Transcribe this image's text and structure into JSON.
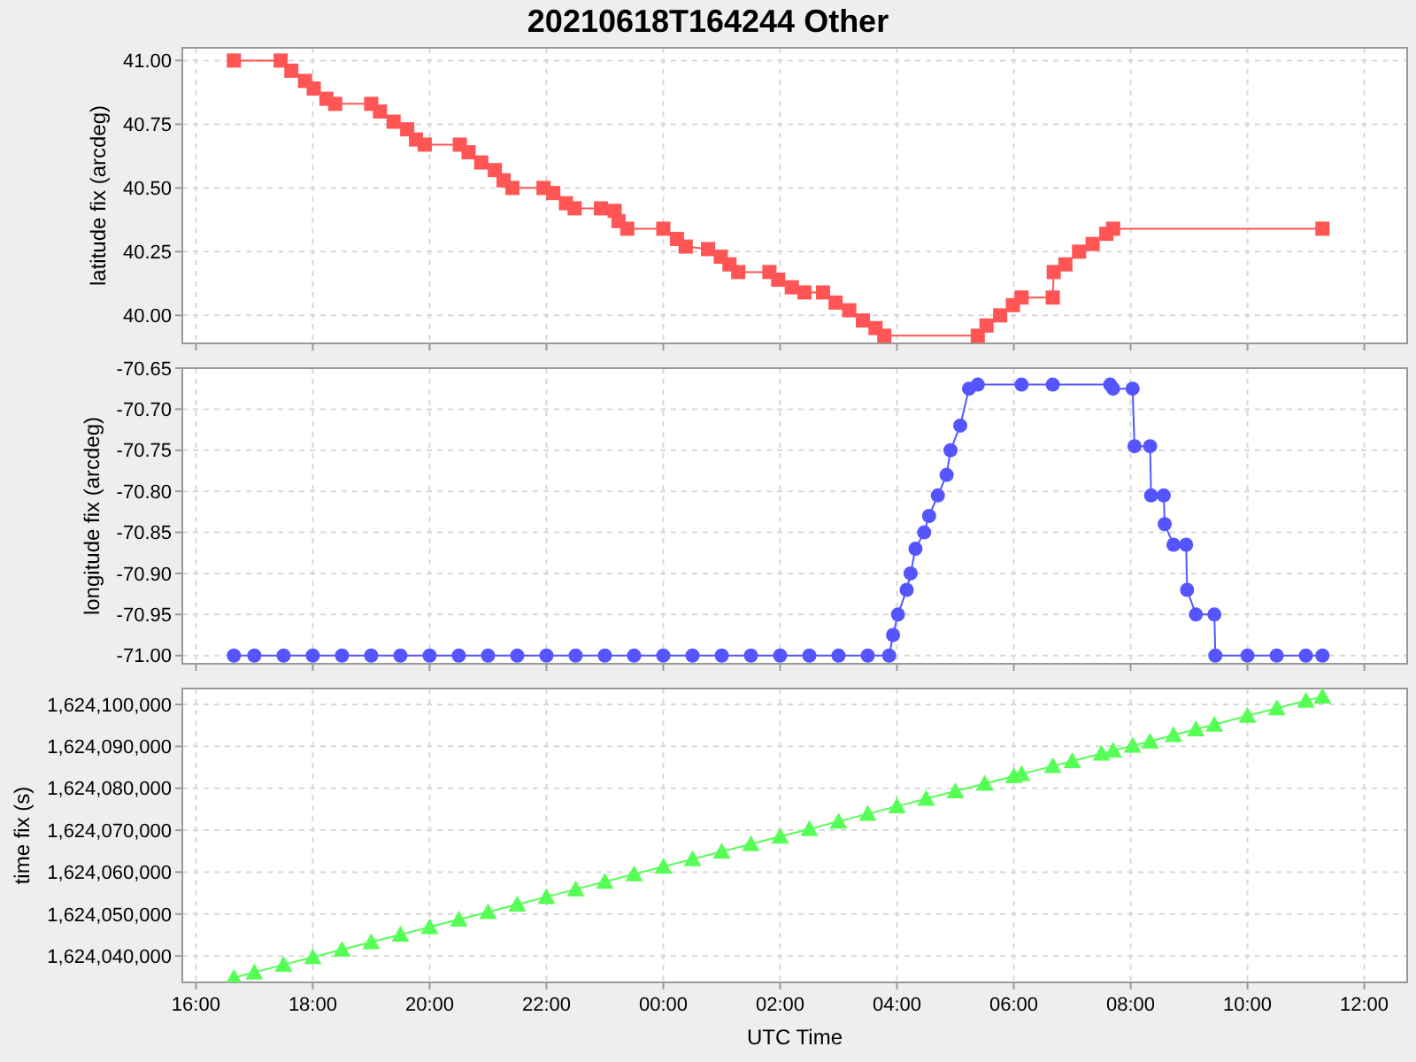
{
  "chart_data": [
    {
      "type": "line",
      "title": "20210618T164244 Other",
      "ylabel": "latitude fix (arcdeg)",
      "marker": "square",
      "grid": true,
      "tick_labels": "y",
      "xlim": [
        "2021-06-18T15:46",
        "2021-06-19T12:44"
      ],
      "ylim": [
        39.89,
        41.05
      ],
      "xticks": [
        {
          "value": "2021-06-18T16:00",
          "label": null
        },
        {
          "value": "2021-06-18T18:00",
          "label": null
        },
        {
          "value": "2021-06-18T20:00",
          "label": null
        },
        {
          "value": "2021-06-18T22:00",
          "label": null
        },
        {
          "value": "2021-06-19T00:00",
          "label": null
        },
        {
          "value": "2021-06-19T02:00",
          "label": null
        },
        {
          "value": "2021-06-19T04:00",
          "label": null
        },
        {
          "value": "2021-06-19T06:00",
          "label": null
        },
        {
          "value": "2021-06-19T08:00",
          "label": null
        },
        {
          "value": "2021-06-19T10:00",
          "label": null
        },
        {
          "value": "2021-06-19T12:00",
          "label": null
        }
      ],
      "yticks": [
        {
          "value": 40,
          "label": "40.00"
        },
        {
          "value": 40.25,
          "label": "40.25"
        },
        {
          "value": 40.5,
          "label": "40.50"
        },
        {
          "value": 40.75,
          "label": "40.75"
        },
        {
          "value": 41,
          "label": "41.00"
        }
      ],
      "series": [
        {
          "color": "#ff5555",
          "x": [
            "2021-06-18T16:39",
            "2021-06-18T17:27",
            "2021-06-18T17:38",
            "2021-06-18T17:52",
            "2021-06-18T18:01",
            "2021-06-18T18:14",
            "2021-06-18T18:23",
            "2021-06-18T19:00",
            "2021-06-18T19:09",
            "2021-06-18T19:23",
            "2021-06-18T19:37",
            "2021-06-18T19:46",
            "2021-06-18T19:55",
            "2021-06-18T20:31",
            "2021-06-18T20:40",
            "2021-06-18T20:53",
            "2021-06-18T21:07",
            "2021-06-18T21:16",
            "2021-06-18T21:25",
            "2021-06-18T21:57",
            "2021-06-18T22:07",
            "2021-06-18T22:20",
            "2021-06-18T22:29",
            "2021-06-18T22:56",
            "2021-06-18T23:10",
            "2021-06-18T23:14",
            "2021-06-18T23:23",
            "2021-06-19T00:00",
            "2021-06-19T00:14",
            "2021-06-19T00:23",
            "2021-06-19T00:46",
            "2021-06-19T00:59",
            "2021-06-19T01:08",
            "2021-06-19T01:17",
            "2021-06-19T01:49",
            "2021-06-19T01:58",
            "2021-06-19T02:12",
            "2021-06-19T02:25",
            "2021-06-19T02:44",
            "2021-06-19T02:57",
            "2021-06-19T03:11",
            "2021-06-19T03:25",
            "2021-06-19T03:38",
            "2021-06-19T03:47",
            "2021-06-19T05:23",
            "2021-06-19T05:32",
            "2021-06-19T05:46",
            "2021-06-19T05:59",
            "2021-06-19T06:08",
            "2021-06-19T06:40",
            "2021-06-19T06:41",
            "2021-06-19T06:53",
            "2021-06-19T07:07",
            "2021-06-19T07:21",
            "2021-06-19T07:35",
            "2021-06-19T07:42",
            "2021-06-19T11:17"
          ],
          "values": [
            41.0,
            41.0,
            40.96,
            40.92,
            40.89,
            40.85,
            40.83,
            40.83,
            40.8,
            40.76,
            40.73,
            40.69,
            40.67,
            40.67,
            40.64,
            40.6,
            40.57,
            40.53,
            40.5,
            40.5,
            40.48,
            40.44,
            40.42,
            40.42,
            40.41,
            40.37,
            40.34,
            40.34,
            40.3,
            40.27,
            40.26,
            40.23,
            40.2,
            40.17,
            40.17,
            40.14,
            40.11,
            40.09,
            40.09,
            40.05,
            40.02,
            39.98,
            39.95,
            39.92,
            39.92,
            39.96,
            40.0,
            40.04,
            40.07,
            40.07,
            40.17,
            40.2,
            40.25,
            40.28,
            40.32,
            40.34,
            40.34
          ]
        }
      ]
    },
    {
      "type": "line",
      "ylabel": "longitude fix (arcdeg)",
      "marker": "circle",
      "grid": true,
      "tick_labels": "y",
      "xlim": [
        "2021-06-18T15:46",
        "2021-06-19T12:44"
      ],
      "ylim": [
        -71.01,
        -70.65
      ],
      "xticks": [
        {
          "value": "2021-06-18T16:00",
          "label": null
        },
        {
          "value": "2021-06-18T18:00",
          "label": null
        },
        {
          "value": "2021-06-18T20:00",
          "label": null
        },
        {
          "value": "2021-06-18T22:00",
          "label": null
        },
        {
          "value": "2021-06-19T00:00",
          "label": null
        },
        {
          "value": "2021-06-19T02:00",
          "label": null
        },
        {
          "value": "2021-06-19T04:00",
          "label": null
        },
        {
          "value": "2021-06-19T06:00",
          "label": null
        },
        {
          "value": "2021-06-19T08:00",
          "label": null
        },
        {
          "value": "2021-06-19T10:00",
          "label": null
        },
        {
          "value": "2021-06-19T12:00",
          "label": null
        }
      ],
      "yticks": [
        {
          "value": -71,
          "label": "-71.00"
        },
        {
          "value": -70.95,
          "label": "-70.95"
        },
        {
          "value": -70.9,
          "label": "-70.90"
        },
        {
          "value": -70.85,
          "label": "-70.85"
        },
        {
          "value": -70.8,
          "label": "-70.80"
        },
        {
          "value": -70.75,
          "label": "-70.75"
        },
        {
          "value": -70.7,
          "label": "-70.70"
        },
        {
          "value": -70.65,
          "label": "-70.65"
        }
      ],
      "series": [
        {
          "color": "#5555ff",
          "x": [
            "2021-06-18T16:39",
            "2021-06-18T17:00",
            "2021-06-18T17:30",
            "2021-06-18T18:00",
            "2021-06-18T18:30",
            "2021-06-18T19:00",
            "2021-06-18T19:30",
            "2021-06-18T20:00",
            "2021-06-18T20:30",
            "2021-06-18T21:00",
            "2021-06-18T21:30",
            "2021-06-18T22:00",
            "2021-06-18T22:30",
            "2021-06-18T23:00",
            "2021-06-18T23:30",
            "2021-06-19T00:00",
            "2021-06-19T00:30",
            "2021-06-19T01:00",
            "2021-06-19T01:30",
            "2021-06-19T02:00",
            "2021-06-19T02:30",
            "2021-06-19T03:00",
            "2021-06-19T03:30",
            "2021-06-19T03:52",
            "2021-06-19T03:56",
            "2021-06-19T04:01",
            "2021-06-19T04:10",
            "2021-06-19T04:14",
            "2021-06-19T04:19",
            "2021-06-19T04:28",
            "2021-06-19T04:33",
            "2021-06-19T04:42",
            "2021-06-19T04:51",
            "2021-06-19T04:55",
            "2021-06-19T05:05",
            "2021-06-19T05:14",
            "2021-06-19T05:23",
            "2021-06-19T06:08",
            "2021-06-19T06:40",
            "2021-06-19T07:39",
            "2021-06-19T07:42",
            "2021-06-19T08:02",
            "2021-06-19T08:04",
            "2021-06-19T08:20",
            "2021-06-19T08:21",
            "2021-06-19T08:34",
            "2021-06-19T08:35",
            "2021-06-19T08:44",
            "2021-06-19T08:57",
            "2021-06-19T08:58",
            "2021-06-19T09:07",
            "2021-06-19T09:26",
            "2021-06-19T09:27",
            "2021-06-19T10:00",
            "2021-06-19T10:30",
            "2021-06-19T11:00",
            "2021-06-19T11:17"
          ],
          "values": [
            -71.0,
            -71.0,
            -71.0,
            -71.0,
            -71.0,
            -71.0,
            -71.0,
            -71.0,
            -71.0,
            -71.0,
            -71.0,
            -71.0,
            -71.0,
            -71.0,
            -71.0,
            -71.0,
            -71.0,
            -71.0,
            -71.0,
            -71.0,
            -71.0,
            -71.0,
            -71.0,
            -71.0,
            -70.975,
            -70.95,
            -70.92,
            -70.9,
            -70.87,
            -70.85,
            -70.83,
            -70.805,
            -70.78,
            -70.75,
            -70.72,
            -70.675,
            -70.67,
            -70.67,
            -70.67,
            -70.67,
            -70.675,
            -70.675,
            -70.745,
            -70.745,
            -70.805,
            -70.805,
            -70.84,
            -70.865,
            -70.865,
            -70.92,
            -70.95,
            -70.95,
            -71.0,
            -71.0,
            -71.0,
            -71.0,
            -71.0
          ]
        }
      ]
    },
    {
      "type": "line",
      "xlabel": "UTC Time",
      "ylabel": "time fix (s)",
      "marker": "triangle",
      "grid": true,
      "xlim": [
        "2021-06-18T15:46",
        "2021-06-19T12:44"
      ],
      "ylim": [
        1624033700,
        1624103800
      ],
      "xticks": [
        {
          "value": "2021-06-18T16:00",
          "label": "16:00"
        },
        {
          "value": "2021-06-18T18:00",
          "label": "18:00"
        },
        {
          "value": "2021-06-18T20:00",
          "label": "20:00"
        },
        {
          "value": "2021-06-18T22:00",
          "label": "22:00"
        },
        {
          "value": "2021-06-19T00:00",
          "label": "00:00"
        },
        {
          "value": "2021-06-19T02:00",
          "label": "02:00"
        },
        {
          "value": "2021-06-19T04:00",
          "label": "04:00"
        },
        {
          "value": "2021-06-19T06:00",
          "label": "06:00"
        },
        {
          "value": "2021-06-19T08:00",
          "label": "08:00"
        },
        {
          "value": "2021-06-19T10:00",
          "label": "10:00"
        },
        {
          "value": "2021-06-19T12:00",
          "label": "12:00"
        }
      ],
      "yticks": [
        {
          "value": 1624040000,
          "label": "1,624,040,000"
        },
        {
          "value": 1624050000,
          "label": "1,624,050,000"
        },
        {
          "value": 1624060000,
          "label": "1,624,060,000"
        },
        {
          "value": 1624070000,
          "label": "1,624,070,000"
        },
        {
          "value": 1624080000,
          "label": "1,624,080,000"
        },
        {
          "value": 1624090000,
          "label": "1,624,090,000"
        },
        {
          "value": 1624100000,
          "label": "1,624,100,000"
        }
      ],
      "series": [
        {
          "color": "#55ff55",
          "x": [
            "2021-06-18T16:39",
            "2021-06-18T17:00",
            "2021-06-18T17:30",
            "2021-06-18T18:00",
            "2021-06-18T18:30",
            "2021-06-18T19:00",
            "2021-06-18T19:30",
            "2021-06-18T20:00",
            "2021-06-18T20:30",
            "2021-06-18T21:00",
            "2021-06-18T21:30",
            "2021-06-18T22:00",
            "2021-06-18T22:30",
            "2021-06-18T23:00",
            "2021-06-18T23:30",
            "2021-06-19T00:00",
            "2021-06-19T00:30",
            "2021-06-19T01:00",
            "2021-06-19T01:30",
            "2021-06-19T02:00",
            "2021-06-19T02:30",
            "2021-06-19T03:00",
            "2021-06-19T03:30",
            "2021-06-19T04:00",
            "2021-06-19T04:30",
            "2021-06-19T05:00",
            "2021-06-19T05:30",
            "2021-06-19T06:00",
            "2021-06-19T06:08",
            "2021-06-19T06:40",
            "2021-06-19T07:00",
            "2021-06-19T07:30",
            "2021-06-19T07:42",
            "2021-06-19T08:02",
            "2021-06-19T08:20",
            "2021-06-19T08:44",
            "2021-06-19T09:07",
            "2021-06-19T09:26",
            "2021-06-19T10:00",
            "2021-06-19T10:30",
            "2021-06-19T11:00",
            "2021-06-19T11:17"
          ],
          "values": [
            1624034800,
            1624036100,
            1624037900,
            1624039700,
            1624041500,
            1624043300,
            1624045100,
            1624046900,
            1624048700,
            1624050500,
            1624052300,
            1624054100,
            1624055900,
            1624057700,
            1624059500,
            1624061300,
            1624063100,
            1624064900,
            1624066700,
            1624068500,
            1624070300,
            1624072100,
            1624073900,
            1624075700,
            1624077500,
            1624079300,
            1624081100,
            1624082900,
            1624083400,
            1624085300,
            1624086500,
            1624088300,
            1624089000,
            1624090200,
            1624091200,
            1624092700,
            1624094100,
            1624095200,
            1624097300,
            1624099100,
            1624100900,
            1624101900
          ]
        }
      ]
    }
  ]
}
